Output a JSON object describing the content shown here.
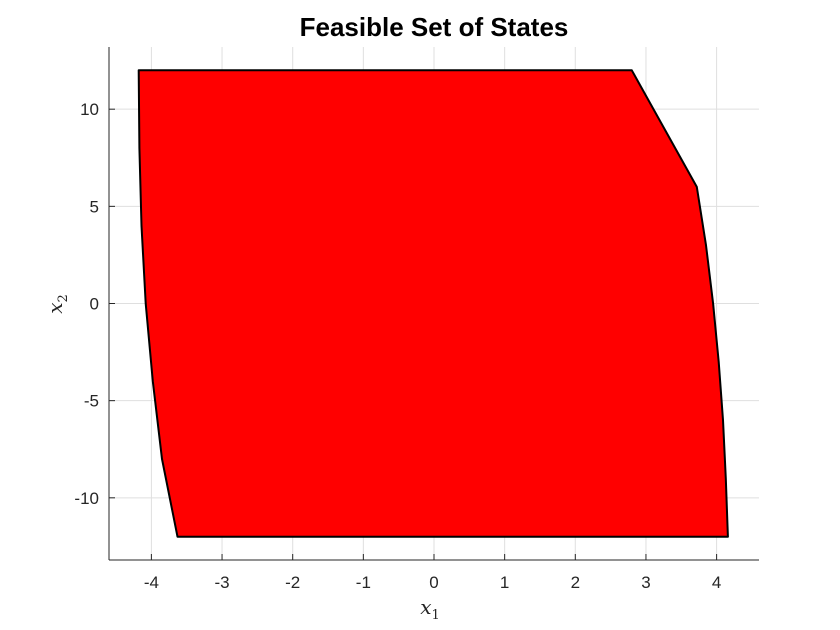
{
  "chart_data": {
    "type": "area",
    "title": "Feasible Set of States",
    "xlabel": {
      "base": "x",
      "sub": "1"
    },
    "ylabel": {
      "base": "x",
      "sub": "2"
    },
    "xlim": [
      -4.6,
      4.6
    ],
    "ylim": [
      -13.2,
      13.2
    ],
    "xticks": [
      -4,
      -3,
      -2,
      -1,
      0,
      1,
      2,
      3,
      4
    ],
    "yticks": [
      -10,
      -5,
      0,
      5,
      10
    ],
    "grid": true,
    "fill_color": "#ff0000",
    "edge_color": "#000000",
    "polygon": [
      [
        -4.18,
        12
      ],
      [
        2.8,
        12
      ],
      [
        3.72,
        6
      ],
      [
        3.85,
        3
      ],
      [
        3.95,
        0
      ],
      [
        4.03,
        -3
      ],
      [
        4.09,
        -6
      ],
      [
        4.13,
        -9
      ],
      [
        4.16,
        -12
      ],
      [
        -3.63,
        -12
      ],
      [
        -3.85,
        -8
      ],
      [
        -3.98,
        -4
      ],
      [
        -4.08,
        0
      ],
      [
        -4.14,
        4
      ],
      [
        -4.17,
        8
      ],
      [
        -4.18,
        12
      ]
    ]
  }
}
